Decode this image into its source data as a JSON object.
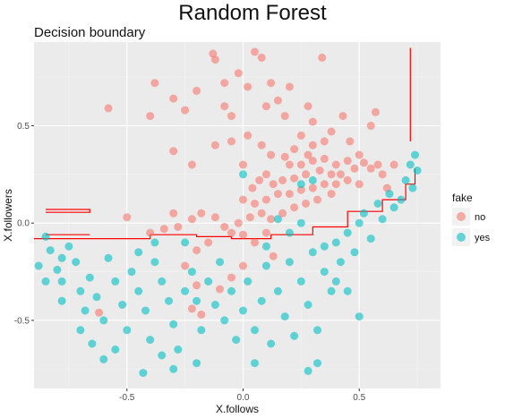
{
  "chart_data": {
    "type": "scatter",
    "title": "Random Forest",
    "subtitle": "Decision boundary",
    "xlabel": "X.follows",
    "ylabel": "X.followers",
    "xlim": [
      -0.9,
      0.85
    ],
    "ylim": [
      -0.85,
      0.93
    ],
    "x_ticks": [
      -0.5,
      0.0,
      0.5
    ],
    "x_tick_labels": [
      "-0.5",
      "0.0",
      "0.5"
    ],
    "y_ticks": [
      -0.5,
      0.0,
      0.5
    ],
    "y_tick_labels": [
      "-0.5",
      "0.0",
      "0.5"
    ],
    "grid": true,
    "legend": {
      "title": "fake",
      "placement": "right",
      "entries": [
        {
          "label": "no",
          "color": "#F8766D"
        },
        {
          "label": "yes",
          "color": "#00BFC4"
        }
      ]
    },
    "boundary_color": "#FF0000",
    "boundary": [
      [
        [
          -0.9,
          -0.08
        ],
        [
          -0.4,
          -0.08
        ],
        [
          -0.4,
          -0.06
        ],
        [
          -0.2,
          -0.06
        ],
        [
          -0.2,
          -0.07
        ],
        [
          -0.05,
          -0.07
        ],
        [
          -0.05,
          -0.08
        ],
        [
          0.12,
          -0.08
        ],
        [
          0.12,
          -0.06
        ],
        [
          0.3,
          -0.06
        ],
        [
          0.3,
          -0.02
        ],
        [
          0.45,
          -0.02
        ],
        [
          0.45,
          0.06
        ],
        [
          0.6,
          0.06
        ],
        [
          0.6,
          0.12
        ],
        [
          0.7,
          0.12
        ],
        [
          0.7,
          0.2
        ],
        [
          0.74,
          0.2
        ],
        [
          0.74,
          0.28
        ]
      ],
      [
        [
          0.72,
          0.42
        ],
        [
          0.72,
          0.9
        ]
      ],
      [
        [
          -0.85,
          0.07
        ],
        [
          -0.66,
          0.07
        ],
        [
          -0.66,
          0.055
        ],
        [
          -0.85,
          0.055
        ]
      ],
      [
        [
          -0.85,
          -0.06
        ],
        [
          -0.66,
          -0.06
        ]
      ]
    ],
    "series": [
      {
        "name": "no",
        "color": "#F8766D",
        "points": [
          [
            -0.58,
            0.59
          ],
          [
            -0.4,
            0.55
          ],
          [
            -0.38,
            0.72
          ],
          [
            -0.3,
            0.64
          ],
          [
            -0.3,
            0.37
          ],
          [
            -0.25,
            0.58
          ],
          [
            -0.22,
            0.3
          ],
          [
            -0.2,
            0.68
          ],
          [
            -0.13,
            0.87
          ],
          [
            -0.12,
            0.84
          ],
          [
            -0.08,
            0.72
          ],
          [
            -0.05,
            0.55
          ],
          [
            -0.02,
            0.77
          ],
          [
            0.02,
            0.7
          ],
          [
            0.05,
            0.88
          ],
          [
            0.08,
            0.85
          ],
          [
            0.12,
            0.72
          ],
          [
            0.15,
            0.63
          ],
          [
            0.18,
            0.55
          ],
          [
            0.2,
            0.7
          ],
          [
            0.28,
            0.6
          ],
          [
            0.34,
            0.85
          ],
          [
            0.3,
            0.52
          ],
          [
            0.38,
            0.47
          ],
          [
            0.43,
            0.55
          ],
          [
            0.46,
            0.42
          ],
          [
            0.5,
            0.35
          ],
          [
            0.52,
            0.31
          ],
          [
            0.55,
            0.28
          ],
          [
            0.58,
            0.3
          ],
          [
            0.6,
            0.25
          ],
          [
            0.62,
            0.18
          ],
          [
            0.65,
            0.3
          ],
          [
            0.57,
            0.57
          ],
          [
            0.55,
            0.5
          ],
          [
            0.25,
            0.45
          ],
          [
            0.3,
            0.4
          ],
          [
            0.35,
            0.42
          ],
          [
            0.28,
            0.35
          ],
          [
            0.22,
            0.38
          ],
          [
            0.18,
            0.34
          ],
          [
            0.2,
            0.3
          ],
          [
            0.25,
            0.3
          ],
          [
            0.3,
            0.32
          ],
          [
            0.35,
            0.33
          ],
          [
            0.4,
            0.3
          ],
          [
            0.45,
            0.32
          ],
          [
            0.48,
            0.28
          ],
          [
            0.42,
            0.25
          ],
          [
            0.38,
            0.25
          ],
          [
            0.33,
            0.27
          ],
          [
            0.27,
            0.25
          ],
          [
            0.22,
            0.23
          ],
          [
            0.17,
            0.22
          ],
          [
            0.13,
            0.2
          ],
          [
            0.1,
            0.25
          ],
          [
            0.07,
            0.22
          ],
          [
            0.04,
            0.18
          ],
          [
            0.0,
            0.12
          ],
          [
            0.05,
            0.1
          ],
          [
            0.1,
            0.12
          ],
          [
            0.15,
            0.15
          ],
          [
            0.2,
            0.15
          ],
          [
            0.25,
            0.17
          ],
          [
            0.3,
            0.18
          ],
          [
            0.35,
            0.2
          ],
          [
            0.4,
            0.2
          ],
          [
            0.45,
            0.22
          ],
          [
            0.5,
            0.2
          ],
          [
            0.38,
            0.15
          ],
          [
            0.32,
            0.12
          ],
          [
            0.27,
            0.1
          ],
          [
            0.22,
            0.08
          ],
          [
            0.17,
            0.05
          ],
          [
            0.12,
            0.02
          ],
          [
            0.08,
            0.05
          ],
          [
            0.03,
            0.03
          ],
          [
            -0.02,
            0.0
          ],
          [
            -0.08,
            -0.02
          ],
          [
            -0.12,
            0.03
          ],
          [
            -0.18,
            0.05
          ],
          [
            -0.22,
            0.02
          ],
          [
            -0.28,
            -0.02
          ],
          [
            -0.34,
            -0.03
          ],
          [
            -0.4,
            -0.05
          ],
          [
            -0.5,
            0.03
          ],
          [
            -0.3,
            0.05
          ],
          [
            -0.05,
            -0.05
          ],
          [
            0.0,
            -0.06
          ],
          [
            0.05,
            -0.1
          ],
          [
            0.1,
            -0.05
          ],
          [
            -0.15,
            -0.1
          ],
          [
            -0.2,
            -0.14
          ],
          [
            -0.25,
            -0.22
          ],
          [
            -0.2,
            -0.32
          ],
          [
            -0.22,
            -0.44
          ],
          [
            -0.18,
            -0.47
          ],
          [
            -0.1,
            -0.34
          ],
          [
            -0.05,
            -0.28
          ],
          [
            0.0,
            -0.22
          ],
          [
            0.13,
            -0.17
          ],
          [
            -0.62,
            -0.46
          ],
          [
            -0.05,
            0.42
          ],
          [
            0.02,
            0.45
          ],
          [
            0.08,
            0.4
          ],
          [
            0.12,
            0.35
          ],
          [
            0.0,
            0.3
          ],
          [
            -0.12,
            0.4
          ],
          [
            0.1,
            0.6
          ],
          [
            -0.08,
            0.6
          ]
        ]
      },
      {
        "name": "yes",
        "color": "#00BFC4",
        "points": [
          [
            -0.85,
            -0.07
          ],
          [
            -0.83,
            -0.14
          ],
          [
            -0.8,
            -0.24
          ],
          [
            -0.78,
            -0.3
          ],
          [
            -0.75,
            -0.12
          ],
          [
            -0.72,
            -0.2
          ],
          [
            -0.7,
            -0.35
          ],
          [
            -0.68,
            -0.45
          ],
          [
            -0.66,
            -0.28
          ],
          [
            -0.63,
            -0.38
          ],
          [
            -0.6,
            -0.5
          ],
          [
            -0.58,
            -0.18
          ],
          [
            -0.55,
            -0.3
          ],
          [
            -0.52,
            -0.42
          ],
          [
            -0.5,
            -0.55
          ],
          [
            -0.48,
            -0.25
          ],
          [
            -0.45,
            -0.35
          ],
          [
            -0.42,
            -0.45
          ],
          [
            -0.4,
            -0.6
          ],
          [
            -0.38,
            -0.2
          ],
          [
            -0.35,
            -0.3
          ],
          [
            -0.32,
            -0.4
          ],
          [
            -0.3,
            -0.52
          ],
          [
            -0.28,
            -0.65
          ],
          [
            -0.25,
            -0.35
          ],
          [
            -0.22,
            -0.25
          ],
          [
            -0.2,
            -0.4
          ],
          [
            -0.18,
            -0.55
          ],
          [
            -0.15,
            -0.3
          ],
          [
            -0.12,
            -0.42
          ],
          [
            -0.1,
            -0.2
          ],
          [
            -0.08,
            -0.5
          ],
          [
            -0.05,
            -0.35
          ],
          [
            -0.03,
            -0.6
          ],
          [
            0.0,
            -0.45
          ],
          [
            0.02,
            -0.3
          ],
          [
            0.05,
            -0.55
          ],
          [
            0.08,
            -0.4
          ],
          [
            0.1,
            -0.22
          ],
          [
            0.12,
            -0.62
          ],
          [
            0.15,
            -0.35
          ],
          [
            0.18,
            -0.48
          ],
          [
            0.2,
            -0.2
          ],
          [
            0.22,
            -0.58
          ],
          [
            0.25,
            -0.3
          ],
          [
            0.28,
            -0.42
          ],
          [
            0.3,
            -0.15
          ],
          [
            0.32,
            -0.55
          ],
          [
            0.35,
            -0.25
          ],
          [
            0.38,
            -0.35
          ],
          [
            0.4,
            -0.1
          ],
          [
            0.42,
            -0.2
          ],
          [
            0.45,
            -0.05
          ],
          [
            0.48,
            -0.15
          ],
          [
            0.5,
            0.0
          ],
          [
            0.52,
            0.05
          ],
          [
            0.55,
            -0.08
          ],
          [
            0.58,
            0.1
          ],
          [
            0.6,
            0.02
          ],
          [
            0.63,
            0.15
          ],
          [
            0.65,
            0.08
          ],
          [
            0.68,
            0.12
          ],
          [
            0.7,
            0.22
          ],
          [
            0.72,
            0.3
          ],
          [
            0.74,
            0.35
          ],
          [
            0.75,
            0.27
          ],
          [
            0.73,
            0.18
          ],
          [
            0.5,
            -0.48
          ],
          [
            0.28,
            -0.76
          ],
          [
            0.32,
            -0.72
          ],
          [
            0.05,
            -0.72
          ],
          [
            -0.43,
            -0.77
          ],
          [
            -0.3,
            -0.75
          ],
          [
            -0.6,
            -0.7
          ],
          [
            -0.7,
            -0.55
          ],
          [
            -0.78,
            -0.4
          ],
          [
            -0.65,
            -0.62
          ],
          [
            -0.55,
            -0.65
          ],
          [
            -0.35,
            -0.68
          ],
          [
            -0.2,
            -0.72
          ],
          [
            0.0,
            0.25
          ],
          [
            0.25,
            0.2
          ],
          [
            0.3,
            0.22
          ],
          [
            0.2,
            -0.05
          ],
          [
            0.25,
            0.0
          ],
          [
            0.15,
            0.02
          ],
          [
            0.35,
            -0.12
          ],
          [
            -0.45,
            -0.15
          ],
          [
            -0.38,
            -0.1
          ],
          [
            -0.25,
            -0.1
          ],
          [
            0.1,
            -0.12
          ],
          [
            0.4,
            -0.3
          ],
          [
            0.45,
            -0.35
          ],
          [
            -0.78,
            -0.18
          ],
          [
            -0.88,
            -0.22
          ],
          [
            -0.85,
            -0.3
          ]
        ]
      }
    ]
  }
}
